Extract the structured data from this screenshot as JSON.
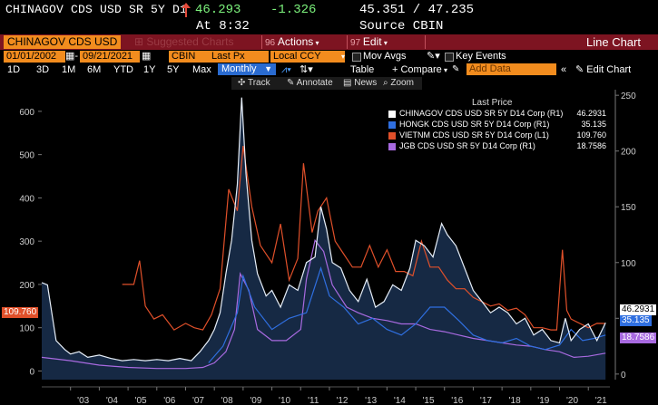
{
  "header": {
    "ticker": "CHINAGOV CDS USD SR 5Y D1",
    "last_price": "46.293",
    "change": "-1.326",
    "bid_ask": "45.351 / 47.235",
    "time": "At 8:32",
    "source": "Source CBIN"
  },
  "menubar": {
    "security_name": "CHINAGOV CDS USD",
    "suggested": "Suggested Charts",
    "actions": "Actions",
    "edit": "Edit",
    "chart_type": "Line Chart"
  },
  "controls": {
    "start_date": "01/01/2002",
    "end_date": "09/21/2021",
    "source": "CBIN",
    "field": "Last Px",
    "currency": "Local CCY",
    "mov_avgs": "Mov Avgs",
    "key_events": "Key Events"
  },
  "periods": [
    "1D",
    "3D",
    "1M",
    "6M",
    "YTD",
    "1Y",
    "5Y",
    "Max"
  ],
  "period_active": "Monthly",
  "tools": {
    "table": "Table",
    "compare": "+ Compare",
    "add_data": "Add Data",
    "edit_chart": "Edit Chart"
  },
  "row4": {
    "track": "Track",
    "annotate": "Annotate",
    "news": "News",
    "zoom": "Zoom"
  },
  "colors": {
    "chinagov": "#e6eef8",
    "hongk": "#2f6fe0",
    "vietnam": "#e0502a",
    "jgb": "#a86ae0"
  },
  "legend": {
    "title": "Last Price",
    "items": [
      {
        "label": "CHINAGOV CDS USD SR 5Y D14 Corp  (R1)",
        "value": "46.2931"
      },
      {
        "label": "HONGK CDS USD SR 5Y D14 Corp  (R1)",
        "value": "35.135"
      },
      {
        "label": "VIETNM CDS USD SR 5Y D14 Corp  (L1)",
        "value": "109.760"
      },
      {
        "label": "JGB CDS USD SR 5Y D14 Corp  (R1)",
        "value": "18.7586"
      }
    ]
  },
  "tags": {
    "vietnam": "109.760",
    "chinagov": "46.2931",
    "hongk": "35.135",
    "jgb": "18.7586"
  },
  "chart_data": {
    "type": "line",
    "title": "",
    "xlabel": "",
    "ylabel": "",
    "x_ticks": [
      "'03",
      "'04",
      "'05",
      "'06",
      "'07",
      "'08",
      "'09",
      "'10",
      "'11",
      "'12",
      "'13",
      "'14",
      "'15",
      "'16",
      "'17",
      "'18",
      "'19",
      "'20",
      "'21"
    ],
    "left_axis": {
      "ticks": [
        0,
        100,
        200,
        300,
        400,
        500,
        600
      ],
      "ylim": [
        -20,
        650
      ]
    },
    "right_axis": {
      "ticks": [
        0,
        50,
        100,
        150,
        200,
        250
      ],
      "ylim": [
        -5,
        255
      ]
    },
    "series": [
      {
        "name": "CHINAGOV CDS USD SR 5Y D14 Corp",
        "axis": "R1",
        "x": [
          2002.0,
          2002.2,
          2002.5,
          2002.8,
          2003.0,
          2003.3,
          2003.6,
          2004.0,
          2004.4,
          2004.8,
          2005.2,
          2005.6,
          2006.0,
          2006.4,
          2006.8,
          2007.2,
          2007.5,
          2007.8,
          2008.0,
          2008.2,
          2008.4,
          2008.6,
          2008.8,
          2008.95,
          2009.1,
          2009.3,
          2009.5,
          2009.8,
          2010.0,
          2010.3,
          2010.6,
          2010.9,
          2011.2,
          2011.5,
          2011.7,
          2011.9,
          2012.1,
          2012.4,
          2012.7,
          2013.0,
          2013.3,
          2013.6,
          2013.9,
          2014.2,
          2014.5,
          2014.8,
          2015.0,
          2015.3,
          2015.6,
          2015.9,
          2016.1,
          2016.4,
          2016.7,
          2017.0,
          2017.3,
          2017.6,
          2017.9,
          2018.2,
          2018.5,
          2018.8,
          2019.1,
          2019.4,
          2019.7,
          2020.0,
          2020.2,
          2020.4,
          2020.7,
          2021.0,
          2021.3,
          2021.6
        ],
        "values": [
          82,
          80,
          30,
          22,
          18,
          20,
          15,
          17,
          14,
          12,
          13,
          12,
          13,
          12,
          14,
          12,
          20,
          30,
          40,
          55,
          90,
          120,
          170,
          248,
          180,
          120,
          90,
          70,
          75,
          60,
          80,
          75,
          100,
          105,
          150,
          130,
          100,
          95,
          75,
          65,
          85,
          60,
          65,
          80,
          75,
          95,
          120,
          115,
          105,
          135,
          125,
          115,
          95,
          75,
          65,
          55,
          60,
          55,
          45,
          50,
          35,
          40,
          30,
          28,
          50,
          30,
          40,
          45,
          30,
          46
        ]
      },
      {
        "name": "HONGK CDS USD SR 5Y D14 Corp",
        "axis": "R1",
        "x": [
          2007.8,
          2008.3,
          2008.8,
          2009.0,
          2009.4,
          2010.0,
          2010.6,
          2011.2,
          2011.7,
          2012.0,
          2012.5,
          2013.0,
          2013.5,
          2014.0,
          2014.5,
          2015.0,
          2015.5,
          2016.0,
          2016.5,
          2017.0,
          2017.5,
          2018.0,
          2018.5,
          2019.0,
          2019.5,
          2020.0,
          2020.4,
          2020.8,
          2021.2,
          2021.6
        ],
        "values": [
          10,
          25,
          55,
          88,
          60,
          40,
          50,
          55,
          95,
          70,
          60,
          45,
          50,
          40,
          35,
          45,
          60,
          60,
          48,
          35,
          30,
          28,
          32,
          25,
          22,
          26,
          40,
          30,
          32,
          35
        ]
      },
      {
        "name": "VIETNM CDS USD SR 5Y D14 Corp",
        "axis": "L1",
        "x": [
          2004.8,
          2005.2,
          2005.4,
          2005.6,
          2005.9,
          2006.2,
          2006.6,
          2007.0,
          2007.3,
          2007.6,
          2007.9,
          2008.2,
          2008.5,
          2008.8,
          2009.0,
          2009.3,
          2009.6,
          2010.0,
          2010.3,
          2010.6,
          2010.9,
          2011.1,
          2011.4,
          2011.6,
          2011.9,
          2012.2,
          2012.5,
          2012.8,
          2013.1,
          2013.4,
          2013.7,
          2014.0,
          2014.3,
          2014.6,
          2014.9,
          2015.2,
          2015.5,
          2015.8,
          2016.1,
          2016.4,
          2016.7,
          2017.0,
          2017.3,
          2017.6,
          2017.9,
          2018.2,
          2018.5,
          2018.8,
          2019.1,
          2019.4,
          2019.7,
          2019.9,
          2020.1,
          2020.25,
          2020.4,
          2020.7,
          2021.0,
          2021.3,
          2021.6
        ],
        "values": [
          200,
          200,
          255,
          150,
          120,
          130,
          95,
          110,
          100,
          95,
          130,
          190,
          420,
          370,
          520,
          380,
          290,
          250,
          340,
          210,
          260,
          480,
          320,
          370,
          400,
          300,
          270,
          240,
          240,
          290,
          240,
          280,
          230,
          230,
          220,
          300,
          240,
          240,
          210,
          190,
          190,
          170,
          160,
          150,
          155,
          140,
          145,
          130,
          100,
          100,
          95,
          95,
          280,
          140,
          120,
          110,
          100,
          110,
          109.76
        ]
      },
      {
        "name": "JGB CDS USD SR 5Y D14 Corp",
        "axis": "R1",
        "x": [
          2002.0,
          2003.0,
          2004.0,
          2005.0,
          2006.0,
          2007.0,
          2007.6,
          2008.0,
          2008.4,
          2008.7,
          2008.9,
          2009.2,
          2009.5,
          2010.0,
          2010.5,
          2011.0,
          2011.2,
          2011.5,
          2011.8,
          2012.1,
          2012.6,
          2013.0,
          2013.5,
          2014.0,
          2014.5,
          2015.0,
          2015.5,
          2016.0,
          2016.5,
          2017.0,
          2017.5,
          2018.0,
          2018.5,
          2019.0,
          2019.5,
          2020.0,
          2020.5,
          2021.0,
          2021.6
        ],
        "values": [
          15,
          12,
          8,
          6,
          5,
          5,
          6,
          10,
          20,
          40,
          90,
          75,
          40,
          30,
          30,
          40,
          85,
          120,
          110,
          80,
          60,
          55,
          50,
          48,
          45,
          45,
          40,
          38,
          35,
          32,
          30,
          28,
          26,
          25,
          22,
          20,
          15,
          16,
          18.76
        ]
      }
    ]
  }
}
